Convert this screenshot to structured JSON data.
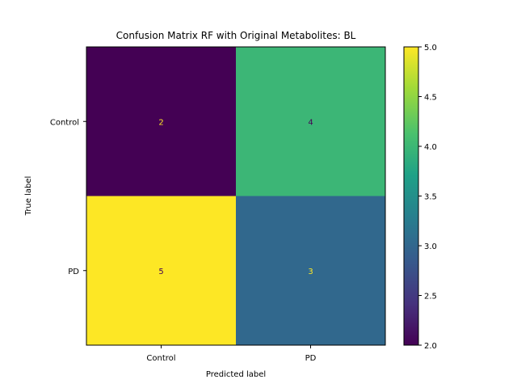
{
  "chart_data": {
    "type": "heatmap",
    "title": "Confusion Matrix RF with Original Metabolites: BL",
    "xlabel": "Predicted label",
    "ylabel": "True label",
    "x_categories": [
      "Control",
      "PD"
    ],
    "y_categories": [
      "Control",
      "PD"
    ],
    "values": [
      [
        2,
        4
      ],
      [
        5,
        3
      ]
    ],
    "cell_labels": [
      [
        "2",
        "4"
      ],
      [
        "5",
        "3"
      ]
    ],
    "colormap": "viridis",
    "colorbar": {
      "range": [
        2.0,
        5.0
      ],
      "ticks": [
        "2.0",
        "2.5",
        "3.0",
        "3.5",
        "4.0",
        "4.5",
        "5.0"
      ]
    },
    "colors": {
      "low": "#440154",
      "high": "#fde725",
      "label_on_dark": "#fde725",
      "label_on_light": "#440154"
    },
    "grid": false
  }
}
